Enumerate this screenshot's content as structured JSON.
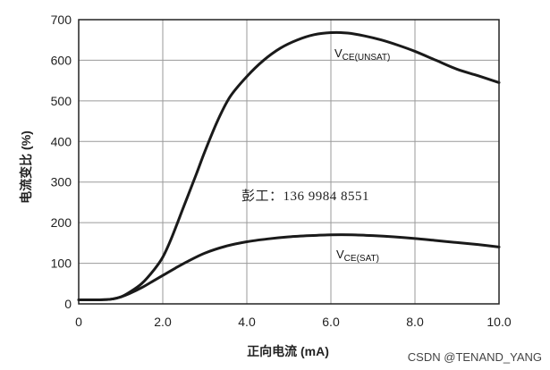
{
  "chart_data": {
    "type": "line",
    "xlabel": "正向电流 (mA)",
    "ylabel": "电流变比 (%)",
    "xlim": [
      0,
      10
    ],
    "ylim": [
      0,
      700
    ],
    "xticks": [
      0,
      2,
      4,
      6,
      8,
      10
    ],
    "xtick_labels": [
      "0",
      "2.0",
      "4.0",
      "6.0",
      "8.0",
      "10.0"
    ],
    "yticks": [
      0,
      100,
      200,
      300,
      400,
      500,
      600,
      700
    ],
    "ytick_labels": [
      "0",
      "100",
      "200",
      "300",
      "400",
      "500",
      "600",
      "700"
    ],
    "grid": true,
    "series": [
      {
        "label_main": "V",
        "label_sub": "CE(UNSAT)",
        "x": [
          0,
          0.5,
          0.8,
          1.0,
          1.2,
          1.5,
          1.8,
          2.0,
          2.2,
          2.5,
          2.8,
          3.0,
          3.3,
          3.6,
          4.0,
          4.4,
          4.8,
          5.2,
          5.6,
          6.0,
          6.4,
          6.8,
          7.2,
          7.6,
          8.0,
          8.5,
          9.0,
          9.5,
          10.0
        ],
        "y": [
          10,
          10,
          12,
          17,
          28,
          50,
          85,
          115,
          160,
          240,
          320,
          375,
          450,
          510,
          560,
          600,
          630,
          650,
          663,
          668,
          667,
          660,
          650,
          637,
          622,
          600,
          578,
          562,
          545
        ]
      },
      {
        "label_main": "V",
        "label_sub": "CE(SAT)",
        "x": [
          0,
          0.5,
          0.8,
          1.0,
          1.2,
          1.5,
          1.8,
          2.0,
          2.3,
          2.6,
          3.0,
          3.5,
          4.0,
          4.5,
          5.0,
          5.5,
          6.0,
          6.5,
          7.0,
          7.5,
          8.0,
          8.5,
          9.0,
          9.5,
          10.0
        ],
        "y": [
          10,
          10,
          12,
          17,
          25,
          40,
          58,
          70,
          88,
          105,
          125,
          142,
          153,
          160,
          165,
          168,
          170,
          170,
          168,
          165,
          161,
          156,
          151,
          146,
          140
        ]
      }
    ]
  },
  "overlay_text": "彭工：136 9984 8551",
  "watermark": "CSDN @TENAND_YANG"
}
